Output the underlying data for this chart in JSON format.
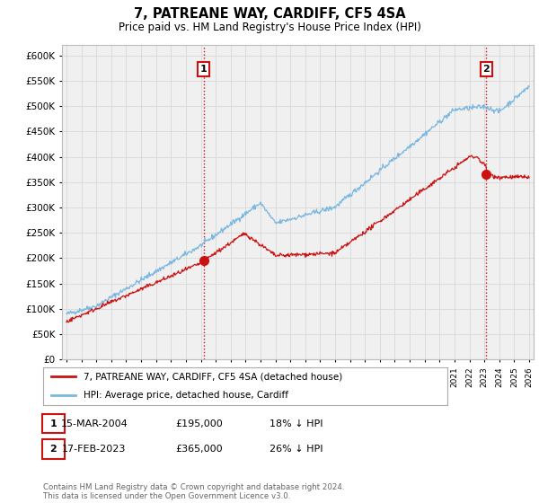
{
  "title": "7, PATREANE WAY, CARDIFF, CF5 4SA",
  "subtitle": "Price paid vs. HM Land Registry's House Price Index (HPI)",
  "ylim": [
    0,
    620000
  ],
  "yticks": [
    0,
    50000,
    100000,
    150000,
    200000,
    250000,
    300000,
    350000,
    400000,
    450000,
    500000,
    550000,
    600000
  ],
  "year_start": 1995,
  "year_end": 2026,
  "hpi_color": "#7ab8e0",
  "price_color": "#cc1111",
  "vline_color": "#cc1111",
  "grid_color": "#d8d8d8",
  "bg_color": "#ffffff",
  "plot_bg_color": "#f0f0f0",
  "legend_label_red": "7, PATREANE WAY, CARDIFF, CF5 4SA (detached house)",
  "legend_label_blue": "HPI: Average price, detached house, Cardiff",
  "annotation1_label": "1",
  "annotation1_date": "15-MAR-2004",
  "annotation1_price": "£195,000",
  "annotation1_hpi": "18% ↓ HPI",
  "annotation1_year": 2004.2,
  "annotation1_value": 195000,
  "annotation2_label": "2",
  "annotation2_date": "17-FEB-2023",
  "annotation2_price": "£365,000",
  "annotation2_hpi": "26% ↓ HPI",
  "annotation2_year": 2023.12,
  "annotation2_value": 365000,
  "footer": "Contains HM Land Registry data © Crown copyright and database right 2024.\nThis data is licensed under the Open Government Licence v3.0."
}
